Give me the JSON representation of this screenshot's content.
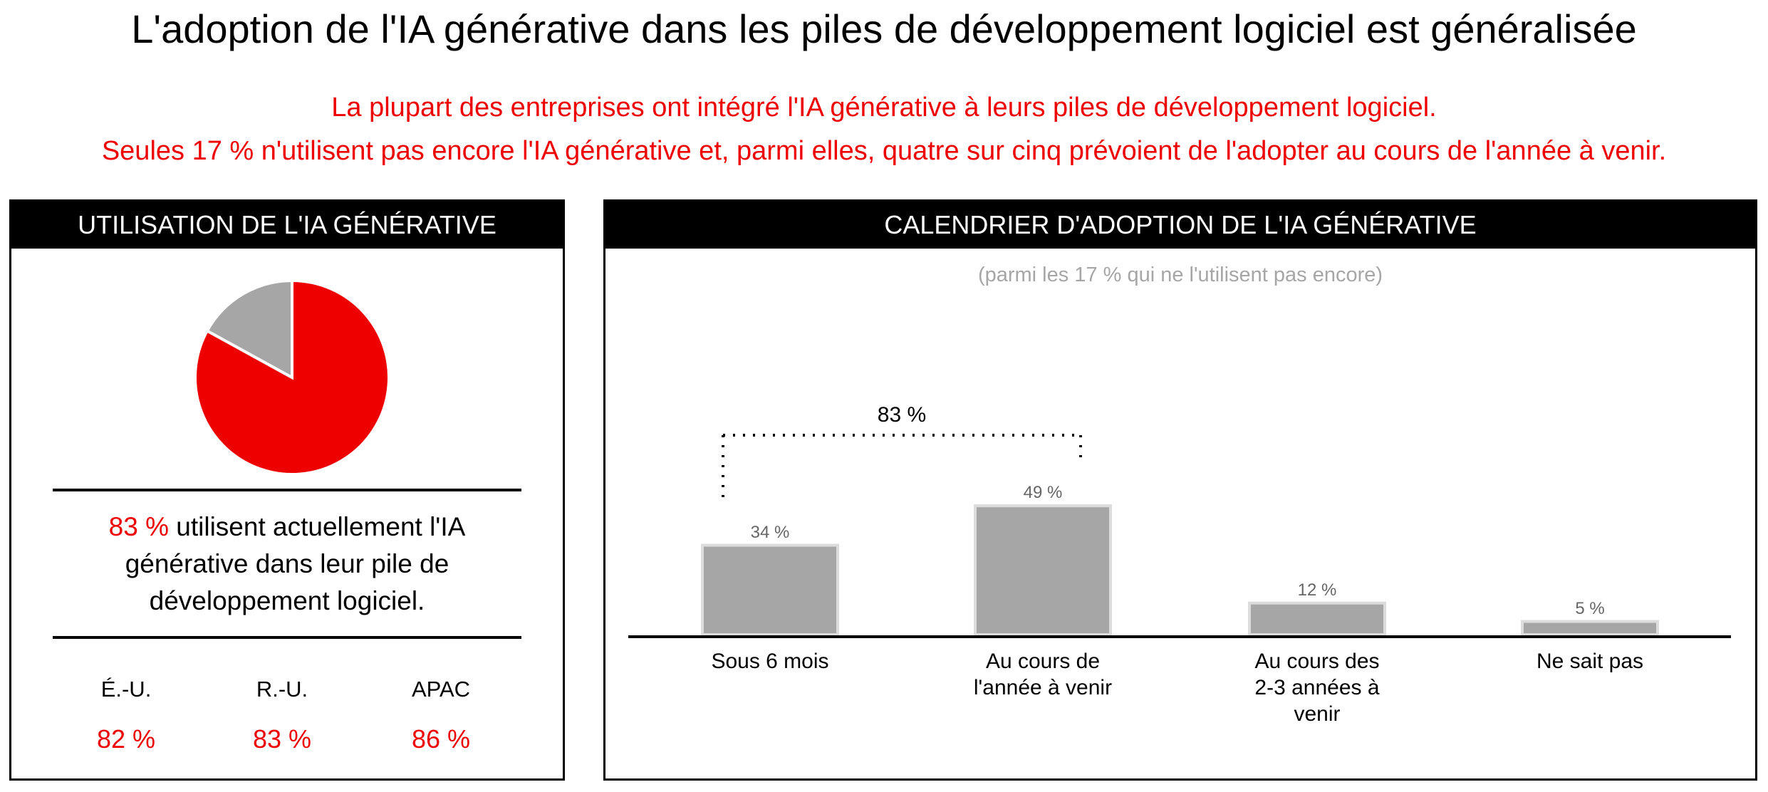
{
  "title": "L'adoption de l'IA générative dans les piles de développement logiciel est généralisée",
  "subtitle_lines": [
    "La plupart des entreprises ont intégré l'IA générative à leurs piles de développement logiciel.",
    "Seules 17 % n'utilisent pas encore l'IA générative et, parmi elles, quatre sur cinq prévoient de l'adopter au cours de l'année à venir."
  ],
  "colors": {
    "accent": "#ee0000",
    "gray": "#a6a6a6",
    "header": "#000000"
  },
  "left_panel": {
    "header": "UTILISATION DE L'IA GÉNÉRATIVE",
    "callout_value": "83 %",
    "callout_text": " utilisent actuellement l'IA générative dans leur pile de développement logiciel.",
    "regions": [
      {
        "label": "É.-U.",
        "value": "82 %"
      },
      {
        "label": "R.-U.",
        "value": "83 %"
      },
      {
        "label": "APAC",
        "value": "86 %"
      }
    ]
  },
  "right_panel": {
    "header": "CALENDRIER D'ADOPTION DE L'IA GÉNÉRATIVE",
    "note": "(parmi les 17 % qui ne l'utilisent pas encore)",
    "bracket_label": "83 %"
  },
  "chart_data": [
    {
      "type": "pie",
      "slices": [
        {
          "label": "utilisent",
          "value": 83,
          "color": "#ee0000"
        },
        {
          "label": "n'utilisent pas",
          "value": 17,
          "color": "#a6a6a6"
        }
      ]
    },
    {
      "type": "bar",
      "categories": [
        [
          "Sous 6 mois"
        ],
        [
          "Au cours de",
          "l'année à venir"
        ],
        [
          "Au cours des",
          "2-3 années à",
          "venir"
        ],
        [
          "Ne sait pas"
        ]
      ],
      "values": [
        34,
        49,
        12,
        5
      ],
      "data_labels": [
        "34 %",
        "49 %",
        "12 %",
        "5 %"
      ],
      "ylim": [
        0,
        60
      ],
      "grid": false
    }
  ]
}
